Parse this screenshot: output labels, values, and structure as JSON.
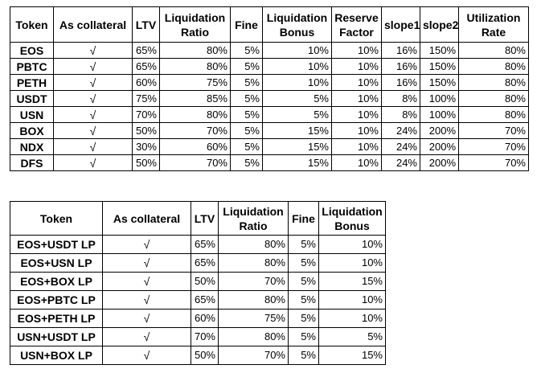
{
  "table1": {
    "headers": [
      "Token",
      "As collateral",
      "LTV",
      "Liquidation Ratio",
      "Fine",
      "Liquidation Bonus",
      "Reserve Factor",
      "slope1",
      "slope2",
      "Utilization Rate"
    ],
    "rows": [
      [
        "EOS",
        "√",
        "65%",
        "80%",
        "5%",
        "10%",
        "10%",
        "16%",
        "150%",
        "80%"
      ],
      [
        "PBTC",
        "√",
        "65%",
        "80%",
        "5%",
        "10%",
        "10%",
        "16%",
        "150%",
        "80%"
      ],
      [
        "PETH",
        "√",
        "60%",
        "75%",
        "5%",
        "10%",
        "10%",
        "16%",
        "150%",
        "80%"
      ],
      [
        "USDT",
        "√",
        "75%",
        "85%",
        "5%",
        "5%",
        "10%",
        "8%",
        "100%",
        "80%"
      ],
      [
        "USN",
        "√",
        "70%",
        "80%",
        "5%",
        "5%",
        "10%",
        "8%",
        "100%",
        "80%"
      ],
      [
        "BOX",
        "√",
        "50%",
        "70%",
        "5%",
        "15%",
        "10%",
        "24%",
        "200%",
        "70%"
      ],
      [
        "NDX",
        "√",
        "30%",
        "60%",
        "5%",
        "15%",
        "10%",
        "24%",
        "200%",
        "70%"
      ],
      [
        "DFS",
        "√",
        "50%",
        "70%",
        "5%",
        "15%",
        "10%",
        "24%",
        "200%",
        "70%"
      ]
    ]
  },
  "table2": {
    "headers": [
      "Token",
      "As collateral",
      "LTV",
      "Liquidation Ratio",
      "Fine",
      "Liquidation Bonus"
    ],
    "rows": [
      [
        "EOS+USDT LP",
        "√",
        "65%",
        "80%",
        "5%",
        "10%"
      ],
      [
        "EOS+USN LP",
        "√",
        "65%",
        "80%",
        "5%",
        "10%"
      ],
      [
        "EOS+BOX LP",
        "√",
        "50%",
        "70%",
        "5%",
        "15%"
      ],
      [
        "EOS+PBTC LP",
        "√",
        "65%",
        "80%",
        "5%",
        "10%"
      ],
      [
        "EOS+PETH LP",
        "√",
        "60%",
        "75%",
        "5%",
        "10%"
      ],
      [
        "USN+USDT LP",
        "√",
        "70%",
        "80%",
        "5%",
        "5%"
      ],
      [
        "USN+BOX LP",
        "√",
        "50%",
        "70%",
        "5%",
        "15%"
      ]
    ]
  }
}
